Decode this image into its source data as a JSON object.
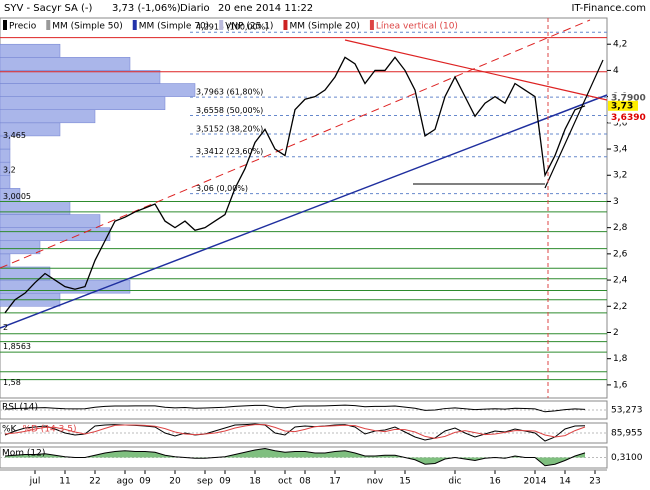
{
  "header": {
    "title": "SYV - Sacyr SA (-)",
    "change": "3,73 (-1,06%)",
    "period": "Diario",
    "date": "20 ene 2014 11:22",
    "brand": "IT-Finance.com"
  },
  "legend": [
    {
      "label": "Precio",
      "color": "#000000"
    },
    {
      "label": "MM (Simple 50)",
      "color": "#999999"
    },
    {
      "label": "MM (Simple 70)",
      "color": "#2233aa"
    },
    {
      "label": "VNP (25 1)",
      "color": "#bbbbdd"
    },
    {
      "label": "MM (Simple 20)",
      "color": "#cc2222"
    },
    {
      "label": "Línea vertical (10)",
      "color": "#dd4444"
    }
  ],
  "chart_data": {
    "type": "line",
    "categories": [
      null,
      null,
      null,
      "jul",
      null,
      null,
      "11",
      null,
      null,
      "22",
      null,
      null,
      "ago",
      null,
      "09",
      null,
      null,
      "20",
      null,
      null,
      "sep",
      null,
      "09",
      null,
      null,
      "18",
      null,
      null,
      "oct",
      null,
      "08",
      null,
      null,
      "17",
      null,
      null,
      null,
      "nov",
      null,
      null,
      "15",
      null,
      null,
      null,
      null,
      "dic",
      null,
      null,
      null,
      "16",
      null,
      null,
      null,
      "2014",
      null,
      null,
      "14",
      null,
      null,
      "23"
    ],
    "series": [
      {
        "name": "Precio",
        "color": "#000000",
        "values": [
          2.15,
          2.25,
          2.3,
          2.38,
          2.45,
          2.4,
          2.35,
          2.33,
          2.35,
          2.55,
          2.7,
          2.85,
          2.88,
          2.92,
          2.95,
          2.98,
          2.85,
          2.8,
          2.85,
          2.78,
          2.8,
          2.85,
          2.9,
          3.1,
          3.25,
          3.45,
          3.55,
          3.4,
          3.35,
          3.7,
          3.78,
          3.8,
          3.85,
          3.95,
          4.1,
          4.05,
          3.9,
          4.0,
          4.0,
          4.1,
          4.0,
          3.85,
          3.5,
          3.55,
          3.8,
          3.95,
          3.8,
          3.65,
          3.75,
          3.8,
          3.75,
          3.9,
          3.85,
          3.8,
          3.2,
          3.35,
          3.55,
          3.7,
          3.73,
          null
        ]
      }
    ],
    "ylim": [
      1.5,
      4.4
    ],
    "yticks": [
      {
        "value": 1.6,
        "label": "1,6"
      },
      {
        "value": 1.8,
        "label": "1,8"
      },
      {
        "value": 2,
        "label": "2"
      },
      {
        "value": 2.2,
        "label": "2,2"
      },
      {
        "value": 2.4,
        "label": "2,4"
      },
      {
        "value": 2.6,
        "label": "2,6"
      },
      {
        "value": 2.8,
        "label": "2,8"
      },
      {
        "value": 3,
        "label": "3"
      },
      {
        "value": 3.2,
        "label": "3,2"
      },
      {
        "value": 3.4,
        "label": "3,4"
      },
      {
        "value": 3.6,
        "label": "3,6"
      },
      {
        "value": 3.8,
        "label": "3,8"
      },
      {
        "value": 4,
        "label": "4"
      },
      {
        "value": 4.2,
        "label": "4,2"
      }
    ],
    "fibonacci": [
      {
        "value": 4.2915,
        "label": "4,2915 (100,00%)"
      },
      {
        "value": 3.7963,
        "label": "3,7963 (61,80%)"
      },
      {
        "value": 3.6558,
        "label": "3,6558 (50,00%)"
      },
      {
        "value": 3.5152,
        "label": "3,5152 (38,20%)"
      },
      {
        "value": 3.3412,
        "label": "3,3412 (23,60%)"
      },
      {
        "value": 3.06,
        "label": "3,06 (0,00%)"
      }
    ],
    "support_levels": {
      "color": "#2e8b2e",
      "values": [
        3.0,
        2.92,
        2.77,
        2.64,
        2.49,
        2.41,
        2.32,
        2.25,
        2.15,
        1.99,
        1.93,
        1.85,
        1.7,
        1.64
      ]
    },
    "resistance_levels": {
      "color": "#dd2222",
      "values": [
        4.25,
        3.99
      ]
    },
    "volume_profile": {
      "color": "#aab6ea",
      "bins": [
        2.2,
        2.3,
        2.4,
        2.5,
        2.6,
        2.7,
        2.8,
        2.9,
        3.0,
        3.1,
        3.2,
        3.3,
        3.4,
        3.5,
        3.6,
        3.7,
        3.8,
        3.9,
        4.0,
        4.1,
        4.2
      ],
      "values": [
        60,
        130,
        50,
        10,
        40,
        110,
        100,
        70,
        20,
        10,
        10,
        10,
        10,
        60,
        95,
        165,
        195,
        160,
        130,
        60
      ]
    },
    "profile_labels": [
      {
        "value": 3.465,
        "label": "3,465"
      },
      {
        "value": 3.2,
        "label": "3,2"
      },
      {
        "value": 3.0005,
        "label": "3,0005"
      },
      {
        "value": 2,
        "label": "2"
      },
      {
        "value": 1.8563,
        "label": "1,8563"
      },
      {
        "value": 1.58,
        "label": "1,58"
      }
    ],
    "price_labels": [
      {
        "value": 3.79,
        "label": "3,7900",
        "color": "#555555",
        "bg": "#ffffff"
      },
      {
        "value": 3.73,
        "label": "3,73",
        "color": "#000000",
        "bg": "#ffee00"
      },
      {
        "value": 3.639,
        "label": "3,6390",
        "color": "#dd0000",
        "bg": "#ffffff"
      }
    ]
  },
  "indicators": [
    {
      "name": "RSI (14)",
      "ylim": [
        0,
        100
      ],
      "last_label": "53,273",
      "series": [
        {
          "color": "#000000",
          "values": [
            55,
            58,
            60,
            62,
            63,
            60,
            57,
            56,
            57,
            65,
            70,
            72,
            72,
            73,
            73,
            73,
            65,
            62,
            64,
            60,
            61,
            63,
            65,
            70,
            73,
            76,
            76,
            65,
            62,
            70,
            72,
            72,
            73,
            75,
            77,
            74,
            68,
            70,
            70,
            72,
            66,
            60,
            48,
            50,
            58,
            62,
            57,
            52,
            55,
            57,
            55,
            60,
            58,
            56,
            40,
            45,
            52,
            56,
            53.273,
            null
          ]
        }
      ]
    },
    {
      "name": "%K",
      "name2": "%D (14 3 5)",
      "ylim": [
        0,
        100
      ],
      "last_label": "85,955",
      "series": [
        {
          "color": "#000000",
          "values": [
            40,
            60,
            75,
            80,
            85,
            70,
            50,
            40,
            45,
            85,
            90,
            92,
            90,
            88,
            85,
            80,
            50,
            35,
            50,
            40,
            45,
            60,
            75,
            90,
            92,
            95,
            90,
            50,
            40,
            80,
            85,
            82,
            85,
            90,
            92,
            80,
            45,
            60,
            65,
            80,
            55,
            30,
            15,
            25,
            60,
            75,
            50,
            30,
            45,
            60,
            55,
            70,
            60,
            50,
            10,
            30,
            70,
            85,
            85.955,
            null
          ]
        },
        {
          "color": "#dd4444",
          "values": [
            45,
            50,
            58,
            70,
            78,
            78,
            68,
            55,
            45,
            57,
            73,
            88,
            90,
            90,
            88,
            84,
            72,
            55,
            45,
            42,
            45,
            50,
            60,
            75,
            85,
            92,
            92,
            78,
            60,
            57,
            68,
            82,
            84,
            86,
            89,
            87,
            72,
            62,
            57,
            68,
            67,
            55,
            33,
            23,
            33,
            53,
            62,
            52,
            42,
            45,
            53,
            62,
            62,
            60,
            40,
            30,
            37,
            62,
            80,
            null
          ]
        }
      ]
    },
    {
      "name": "Mom (12)",
      "ylim": [
        -0.7,
        0.7
      ],
      "last_label": "0,3100",
      "area_color": "#7fbf7f",
      "series": [
        {
          "color": "#000000",
          "values": [
            0.1,
            0.15,
            0.2,
            0.2,
            0.25,
            0.15,
            0.05,
            0,
            0,
            0.15,
            0.3,
            0.4,
            0.45,
            0.4,
            0.4,
            0.35,
            0.15,
            0.05,
            0,
            -0.05,
            -0.05,
            0,
            0.05,
            0.2,
            0.35,
            0.5,
            0.6,
            0.45,
            0.35,
            0.4,
            0.4,
            0.3,
            0.3,
            0.4,
            0.45,
            0.3,
            0.1,
            0.1,
            0.15,
            0.15,
            0,
            -0.15,
            -0.45,
            -0.4,
            -0.1,
            0,
            -0.1,
            -0.2,
            -0.05,
            0,
            -0.05,
            0.1,
            0,
            0,
            -0.55,
            -0.45,
            -0.2,
            0.1,
            0.31,
            null
          ]
        }
      ]
    }
  ]
}
